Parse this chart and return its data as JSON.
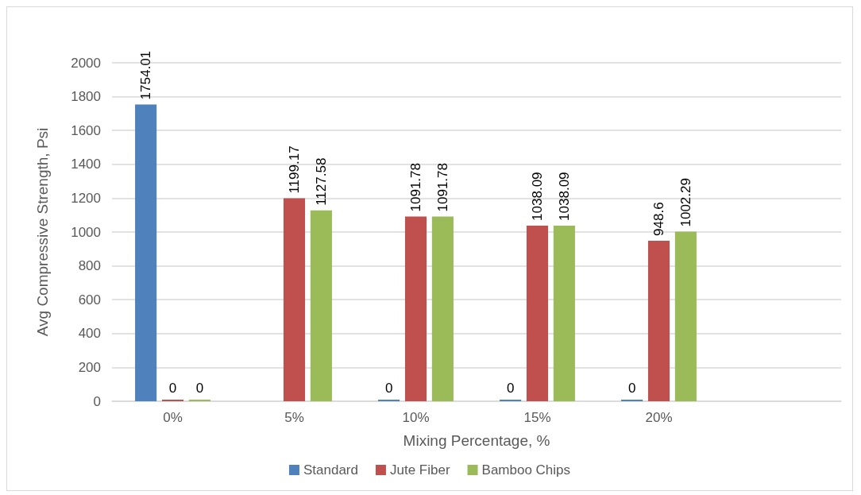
{
  "chart_data": {
    "type": "bar",
    "xlabel": "Mixing Percentage, %",
    "ylabel": "Avg Compressive Strength, Psi",
    "categories": [
      "0%",
      "5%",
      "10%",
      "15%",
      "20%",
      null
    ],
    "series": [
      {
        "name": "Standard",
        "color": "#4f81bd",
        "values": [
          1754.01,
          null,
          0,
          0,
          0,
          null
        ]
      },
      {
        "name": "Jute Fiber",
        "color": "#c0504d",
        "values": [
          0,
          1199.17,
          1091.78,
          1038.09,
          948.6,
          null
        ]
      },
      {
        "name": "Bamboo Chips",
        "color": "#9bbb59",
        "values": [
          0,
          1127.58,
          1091.78,
          1038.09,
          1002.29,
          null
        ]
      }
    ],
    "ylim": [
      0,
      2000
    ],
    "yticks": [
      0,
      200,
      400,
      600,
      800,
      1000,
      1200,
      1400,
      1600,
      1800,
      2000
    ],
    "grid": "y",
    "legend": "bottom",
    "data_labels": true
  }
}
